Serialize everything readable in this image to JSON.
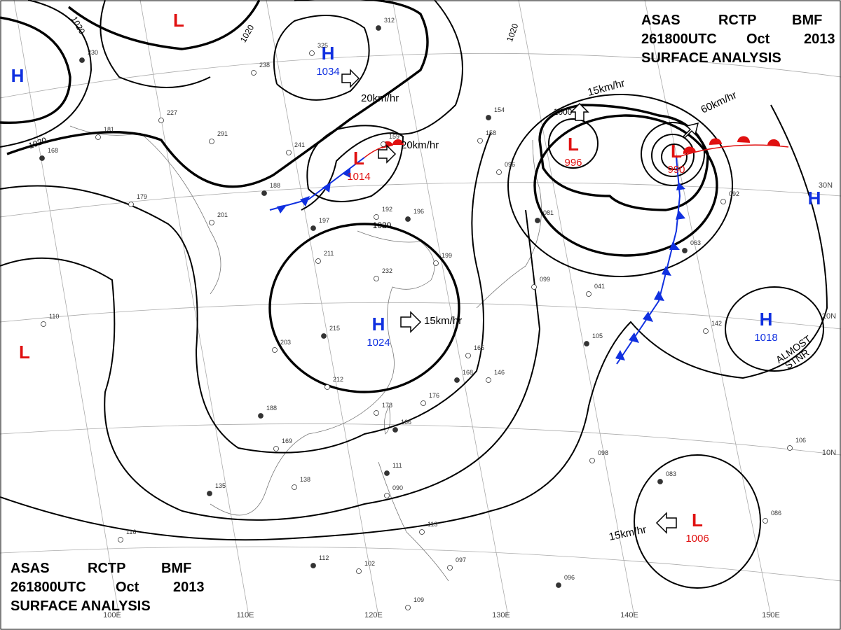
{
  "header": {
    "agency": "ASAS",
    "station": "RCTP",
    "code": "BMF",
    "time": "261800UTC",
    "month": "Oct",
    "year": "2013",
    "product": "SURFACE ANALYSIS"
  },
  "centers": [
    {
      "kind": "H",
      "color": "blue",
      "value": "1034"
    },
    {
      "kind": "L",
      "color": "red",
      "value": "1014"
    },
    {
      "kind": "H",
      "color": "blue",
      "value": "1024"
    },
    {
      "kind": "L",
      "color": "red",
      "value": "996"
    },
    {
      "kind": "L",
      "color": "red",
      "value": "990"
    },
    {
      "kind": "H",
      "color": "blue",
      "value": "1018"
    },
    {
      "kind": "L",
      "color": "red",
      "value": "1006"
    },
    {
      "kind": "H",
      "color": "blue"
    },
    {
      "kind": "L",
      "color": "red"
    },
    {
      "kind": "L",
      "color": "red"
    },
    {
      "kind": "H",
      "color": "blue"
    }
  ],
  "motions": [
    "20km/hr",
    "20km/hr",
    "15km/hr",
    "15km/hr",
    "60km/hr",
    "15km/hr"
  ],
  "isobar_labels": [
    "1020",
    "1020",
    "1020",
    "1020",
    "1020",
    "1000"
  ],
  "longitudes": [
    "100E",
    "110E",
    "120E",
    "130E",
    "140E",
    "150E"
  ],
  "latitudes": [
    "30N",
    "20N",
    "10N"
  ],
  "note": [
    "ALMOST",
    "STNR"
  ],
  "stations": [
    "312",
    "325",
    "238",
    "230",
    "227",
    "181",
    "168",
    "291",
    "241",
    "188",
    "201",
    "179",
    "197",
    "211",
    "232",
    "215",
    "203",
    "212",
    "188",
    "169",
    "138",
    "135",
    "116",
    "110",
    "154",
    "158",
    "096",
    "081",
    "099",
    "041",
    "105",
    "142",
    "098",
    "083",
    "086",
    "106",
    "096",
    "109",
    "102",
    "112",
    "113",
    "097",
    "111",
    "090",
    "178",
    "166",
    "176",
    "146",
    "168",
    "165",
    "199",
    "196",
    "192",
    "159",
    "063",
    "092"
  ]
}
